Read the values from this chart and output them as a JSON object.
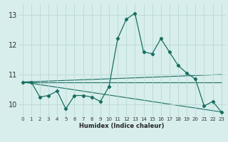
{
  "xlabel": "Humidex (Indice chaleur)",
  "xlim": [
    -0.5,
    23.5
  ],
  "ylim": [
    9.6,
    13.35
  ],
  "yticks": [
    10,
    11,
    12,
    13
  ],
  "xticks": [
    0,
    1,
    2,
    3,
    4,
    5,
    6,
    7,
    8,
    9,
    10,
    11,
    12,
    13,
    14,
    15,
    16,
    17,
    18,
    19,
    20,
    21,
    22,
    23
  ],
  "bg_color": "#d7eeec",
  "grid_color": "#b8d8d4",
  "line_color": "#1a6e62",
  "main_series": {
    "x": [
      0,
      1,
      2,
      3,
      4,
      5,
      6,
      7,
      8,
      9,
      10,
      11,
      12,
      13,
      14,
      15,
      16,
      17,
      18,
      19,
      20,
      21,
      22,
      23
    ],
    "y": [
      10.75,
      10.75,
      10.25,
      10.3,
      10.45,
      9.85,
      10.3,
      10.3,
      10.25,
      10.1,
      10.6,
      12.2,
      12.85,
      13.05,
      11.75,
      11.7,
      12.2,
      11.75,
      11.3,
      11.05,
      10.85,
      9.95,
      10.1,
      9.75
    ]
  },
  "trend_lines": [
    {
      "x": [
        0,
        23
      ],
      "y": [
        10.75,
        11.0
      ]
    },
    {
      "x": [
        0,
        23
      ],
      "y": [
        10.75,
        10.75
      ]
    },
    {
      "x": [
        0,
        23
      ],
      "y": [
        10.75,
        9.75
      ]
    }
  ]
}
